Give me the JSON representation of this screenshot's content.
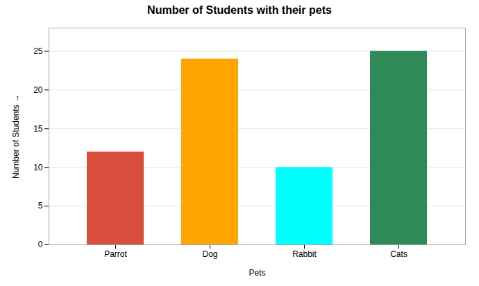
{
  "chart_data": {
    "type": "bar",
    "title": "Number of Students with their pets",
    "xlabel": "Pets",
    "ylabel": "Number of Students",
    "categories": [
      "Parrot",
      "Dog",
      "Rabbit",
      "Cats"
    ],
    "values": [
      12,
      24,
      10,
      25
    ],
    "colors": [
      "#d94f3d",
      "#ffa500",
      "#00ffff",
      "#2e8b57"
    ],
    "ylim": [
      0,
      28
    ],
    "yticks": [
      0,
      5,
      10,
      15,
      20,
      25
    ],
    "grid": true
  }
}
